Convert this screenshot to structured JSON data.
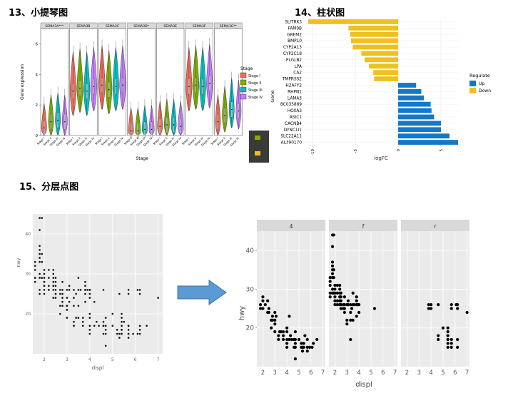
{
  "headings": {
    "violin": "13、小提琴图",
    "bar": "14、柱状图",
    "facet": "15、分层点图"
  },
  "colors": {
    "stage_1": "#f26b5b",
    "stage_2": "#7cae00",
    "stage_3": "#00bfc4",
    "stage_4": "#c77cff",
    "up": "#1478c8",
    "down": "#f0c020",
    "panel_bg": "#ebebeb",
    "strip_bg": "#d9d9d9",
    "arrow": "#5b9bd5"
  },
  "chart_data": [
    {
      "type": "violin",
      "ylabel": "Gene expression",
      "xlabel": "Stage",
      "ylim": [
        0,
        7
      ],
      "yticks": [
        0,
        2,
        4,
        6
      ],
      "legend": {
        "title": "Stage",
        "placement": "right",
        "entries": [
          "Stage I",
          "Stage II",
          "Stage III",
          "Stage IV"
        ]
      },
      "panels": [
        {
          "name": "SEMA3A***",
          "medians": [
            0.5,
            0.9,
            1.0,
            0.9
          ]
        },
        {
          "name": "SEMA3B",
          "medians": [
            2.9,
            3.1,
            2.9,
            3.2
          ]
        },
        {
          "name": "SEMA3C",
          "medians": [
            3.3,
            3.0,
            3.2,
            3.3
          ]
        },
        {
          "name": "SEMA3D*",
          "medians": [
            0.3,
            0.3,
            0.4,
            0.4
          ]
        },
        {
          "name": "SEMA3E",
          "medians": [
            0.6,
            0.7,
            0.7,
            0.6
          ]
        },
        {
          "name": "SEMA3F",
          "medians": [
            3.2,
            3.3,
            3.2,
            3.4
          ]
        },
        {
          "name": "SEMA3G**",
          "medians": [
            0.9,
            1.3,
            1.7,
            1.6
          ]
        }
      ],
      "xticks": [
        "Stage I",
        "Stage II",
        "Stage III",
        "Stage IV"
      ]
    },
    {
      "type": "bar",
      "orientation": "horizontal",
      "xlabel": "logFC",
      "ylabel": "Gene",
      "xlim": [
        -11,
        7
      ],
      "xticks": [
        -10,
        -5,
        0,
        5
      ],
      "legend": {
        "title": "Regulate",
        "placement": "right",
        "entries": [
          "Up",
          "Down"
        ]
      },
      "genes": [
        {
          "name": "SLITRK3",
          "value": -10.5,
          "group": "Down"
        },
        {
          "name": "FAM9B",
          "value": -5.8,
          "group": "Down"
        },
        {
          "name": "GREM2",
          "value": -5.6,
          "group": "Down"
        },
        {
          "name": "BMP10",
          "value": -5.5,
          "group": "Down"
        },
        {
          "name": "CYP2A13",
          "value": -5.3,
          "group": "Down"
        },
        {
          "name": "CYP2C18",
          "value": -4.3,
          "group": "Down"
        },
        {
          "name": "PLGLB2",
          "value": -3.9,
          "group": "Down"
        },
        {
          "name": "LPA",
          "value": -3.4,
          "group": "Down"
        },
        {
          "name": "CA2",
          "value": -2.9,
          "group": "Down"
        },
        {
          "name": "TMPRSS2",
          "value": -2.8,
          "group": "Down"
        },
        {
          "name": "H2AFY2",
          "value": 2.1,
          "group": "Up"
        },
        {
          "name": "RHPN1",
          "value": 2.7,
          "group": "Up"
        },
        {
          "name": "LAMA3",
          "value": 3.0,
          "group": "Up"
        },
        {
          "name": "BC035889",
          "value": 3.8,
          "group": "Up"
        },
        {
          "name": "HOXA3",
          "value": 3.9,
          "group": "Up"
        },
        {
          "name": "ASIC1",
          "value": 4.2,
          "group": "Up"
        },
        {
          "name": "CACNB4",
          "value": 5.0,
          "group": "Up"
        },
        {
          "name": "DYNC1I1",
          "value": 5.0,
          "group": "Up"
        },
        {
          "name": "SLC22A11",
          "value": 6.0,
          "group": "Up"
        },
        {
          "name": "AL390170",
          "value": 7.0,
          "group": "Up"
        }
      ]
    },
    {
      "type": "scatter",
      "xlabel": "displ",
      "ylabel": "hwy",
      "xlim": [
        1.5,
        7.2
      ],
      "ylim": [
        10,
        45
      ],
      "xticks": [
        2,
        3,
        4,
        5,
        6,
        7
      ],
      "yticks": [
        20,
        30,
        40
      ],
      "facets": [
        "4",
        "f",
        "r"
      ],
      "points": {
        "4": [
          [
            1.8,
            26
          ],
          [
            1.8,
            25
          ],
          [
            2.0,
            28
          ],
          [
            2.0,
            27
          ],
          [
            2.0,
            25
          ],
          [
            2.2,
            26
          ],
          [
            2.4,
            27
          ],
          [
            2.4,
            24
          ],
          [
            2.5,
            25
          ],
          [
            2.5,
            24
          ],
          [
            2.7,
            22
          ],
          [
            2.7,
            20
          ],
          [
            2.8,
            23
          ],
          [
            2.8,
            22
          ],
          [
            3.0,
            24
          ],
          [
            3.0,
            22
          ],
          [
            3.0,
            21
          ],
          [
            3.0,
            19
          ],
          [
            3.1,
            23
          ],
          [
            3.3,
            17
          ],
          [
            3.3,
            18
          ],
          [
            3.4,
            19
          ],
          [
            3.5,
            19
          ],
          [
            3.7,
            17
          ],
          [
            3.7,
            18
          ],
          [
            3.7,
            19
          ],
          [
            4.0,
            20
          ],
          [
            4.0,
            19
          ],
          [
            4.0,
            17
          ],
          [
            4.0,
            16
          ],
          [
            4.0,
            15
          ],
          [
            4.2,
            17
          ],
          [
            4.2,
            23
          ],
          [
            4.3,
            18
          ],
          [
            4.4,
            17
          ],
          [
            4.6,
            17
          ],
          [
            4.6,
            15
          ],
          [
            4.7,
            17
          ],
          [
            4.7,
            16
          ],
          [
            4.7,
            12
          ],
          [
            4.7,
            19
          ],
          [
            4.7,
            15
          ],
          [
            5.0,
            17
          ],
          [
            5.2,
            15
          ],
          [
            5.2,
            16
          ],
          [
            5.3,
            14
          ],
          [
            5.3,
            15
          ],
          [
            5.4,
            16
          ],
          [
            5.4,
            15
          ],
          [
            5.5,
            18
          ],
          [
            5.7,
            15
          ],
          [
            5.7,
            14
          ],
          [
            5.7,
            17
          ],
          [
            5.9,
            15
          ],
          [
            6.1,
            15
          ],
          [
            6.2,
            16
          ],
          [
            6.5,
            17
          ]
        ],
        "f": [
          [
            1.6,
            33
          ],
          [
            1.6,
            32
          ],
          [
            1.6,
            31
          ],
          [
            1.6,
            29
          ],
          [
            1.6,
            28
          ],
          [
            1.8,
            44
          ],
          [
            1.8,
            41
          ],
          [
            1.8,
            37
          ],
          [
            1.8,
            36
          ],
          [
            1.8,
            35
          ],
          [
            1.8,
            34
          ],
          [
            1.8,
            33
          ],
          [
            1.8,
            29
          ],
          [
            1.8,
            30
          ],
          [
            1.9,
            44
          ],
          [
            1.9,
            35
          ],
          [
            1.9,
            33
          ],
          [
            1.9,
            29
          ],
          [
            2.0,
            31
          ],
          [
            2.0,
            30
          ],
          [
            2.0,
            29
          ],
          [
            2.0,
            28
          ],
          [
            2.0,
            27
          ],
          [
            2.0,
            26
          ],
          [
            2.2,
            31
          ],
          [
            2.2,
            29
          ],
          [
            2.2,
            27
          ],
          [
            2.2,
            26
          ],
          [
            2.4,
            31
          ],
          [
            2.4,
            30
          ],
          [
            2.4,
            29
          ],
          [
            2.4,
            28
          ],
          [
            2.4,
            27
          ],
          [
            2.4,
            26
          ],
          [
            2.5,
            29
          ],
          [
            2.5,
            28
          ],
          [
            2.5,
            27
          ],
          [
            2.5,
            26
          ],
          [
            2.5,
            25
          ],
          [
            2.7,
            26
          ],
          [
            2.7,
            25
          ],
          [
            2.8,
            28
          ],
          [
            2.8,
            26
          ],
          [
            2.8,
            25
          ],
          [
            2.8,
            24
          ],
          [
            3.0,
            26
          ],
          [
            3.1,
            26
          ],
          [
            3.1,
            27
          ],
          [
            3.3,
            26
          ],
          [
            3.3,
            24
          ],
          [
            3.3,
            22
          ],
          [
            3.5,
            26
          ],
          [
            3.5,
            29
          ],
          [
            3.5,
            22
          ],
          [
            3.6,
            26
          ],
          [
            3.8,
            26
          ],
          [
            3.8,
            27
          ],
          [
            3.8,
            28
          ],
          [
            3.8,
            23
          ],
          [
            3.9,
            26
          ],
          [
            4.0,
            24
          ],
          [
            4.0,
            26
          ],
          [
            3.4,
            25
          ],
          [
            3.0,
            22
          ],
          [
            3.3,
            17
          ],
          [
            3.0,
            21
          ],
          [
            5.3,
            25
          ]
        ],
        "r": [
          [
            3.8,
            26
          ],
          [
            3.8,
            25
          ],
          [
            4.0,
            25
          ],
          [
            4.0,
            26
          ],
          [
            4.6,
            17
          ],
          [
            4.6,
            18
          ],
          [
            4.6,
            26
          ],
          [
            5.0,
            20
          ],
          [
            5.4,
            18
          ],
          [
            5.4,
            17
          ],
          [
            5.4,
            19
          ],
          [
            5.4,
            20
          ],
          [
            5.4,
            15
          ],
          [
            5.4,
            16
          ],
          [
            5.7,
            25
          ],
          [
            5.7,
            26
          ],
          [
            5.7,
            15
          ],
          [
            5.7,
            16
          ],
          [
            5.7,
            17
          ],
          [
            6.1,
            26
          ],
          [
            6.2,
            25
          ],
          [
            6.2,
            26
          ],
          [
            6.2,
            15
          ],
          [
            6.2,
            17
          ],
          [
            7.0,
            24
          ]
        ]
      }
    }
  ]
}
